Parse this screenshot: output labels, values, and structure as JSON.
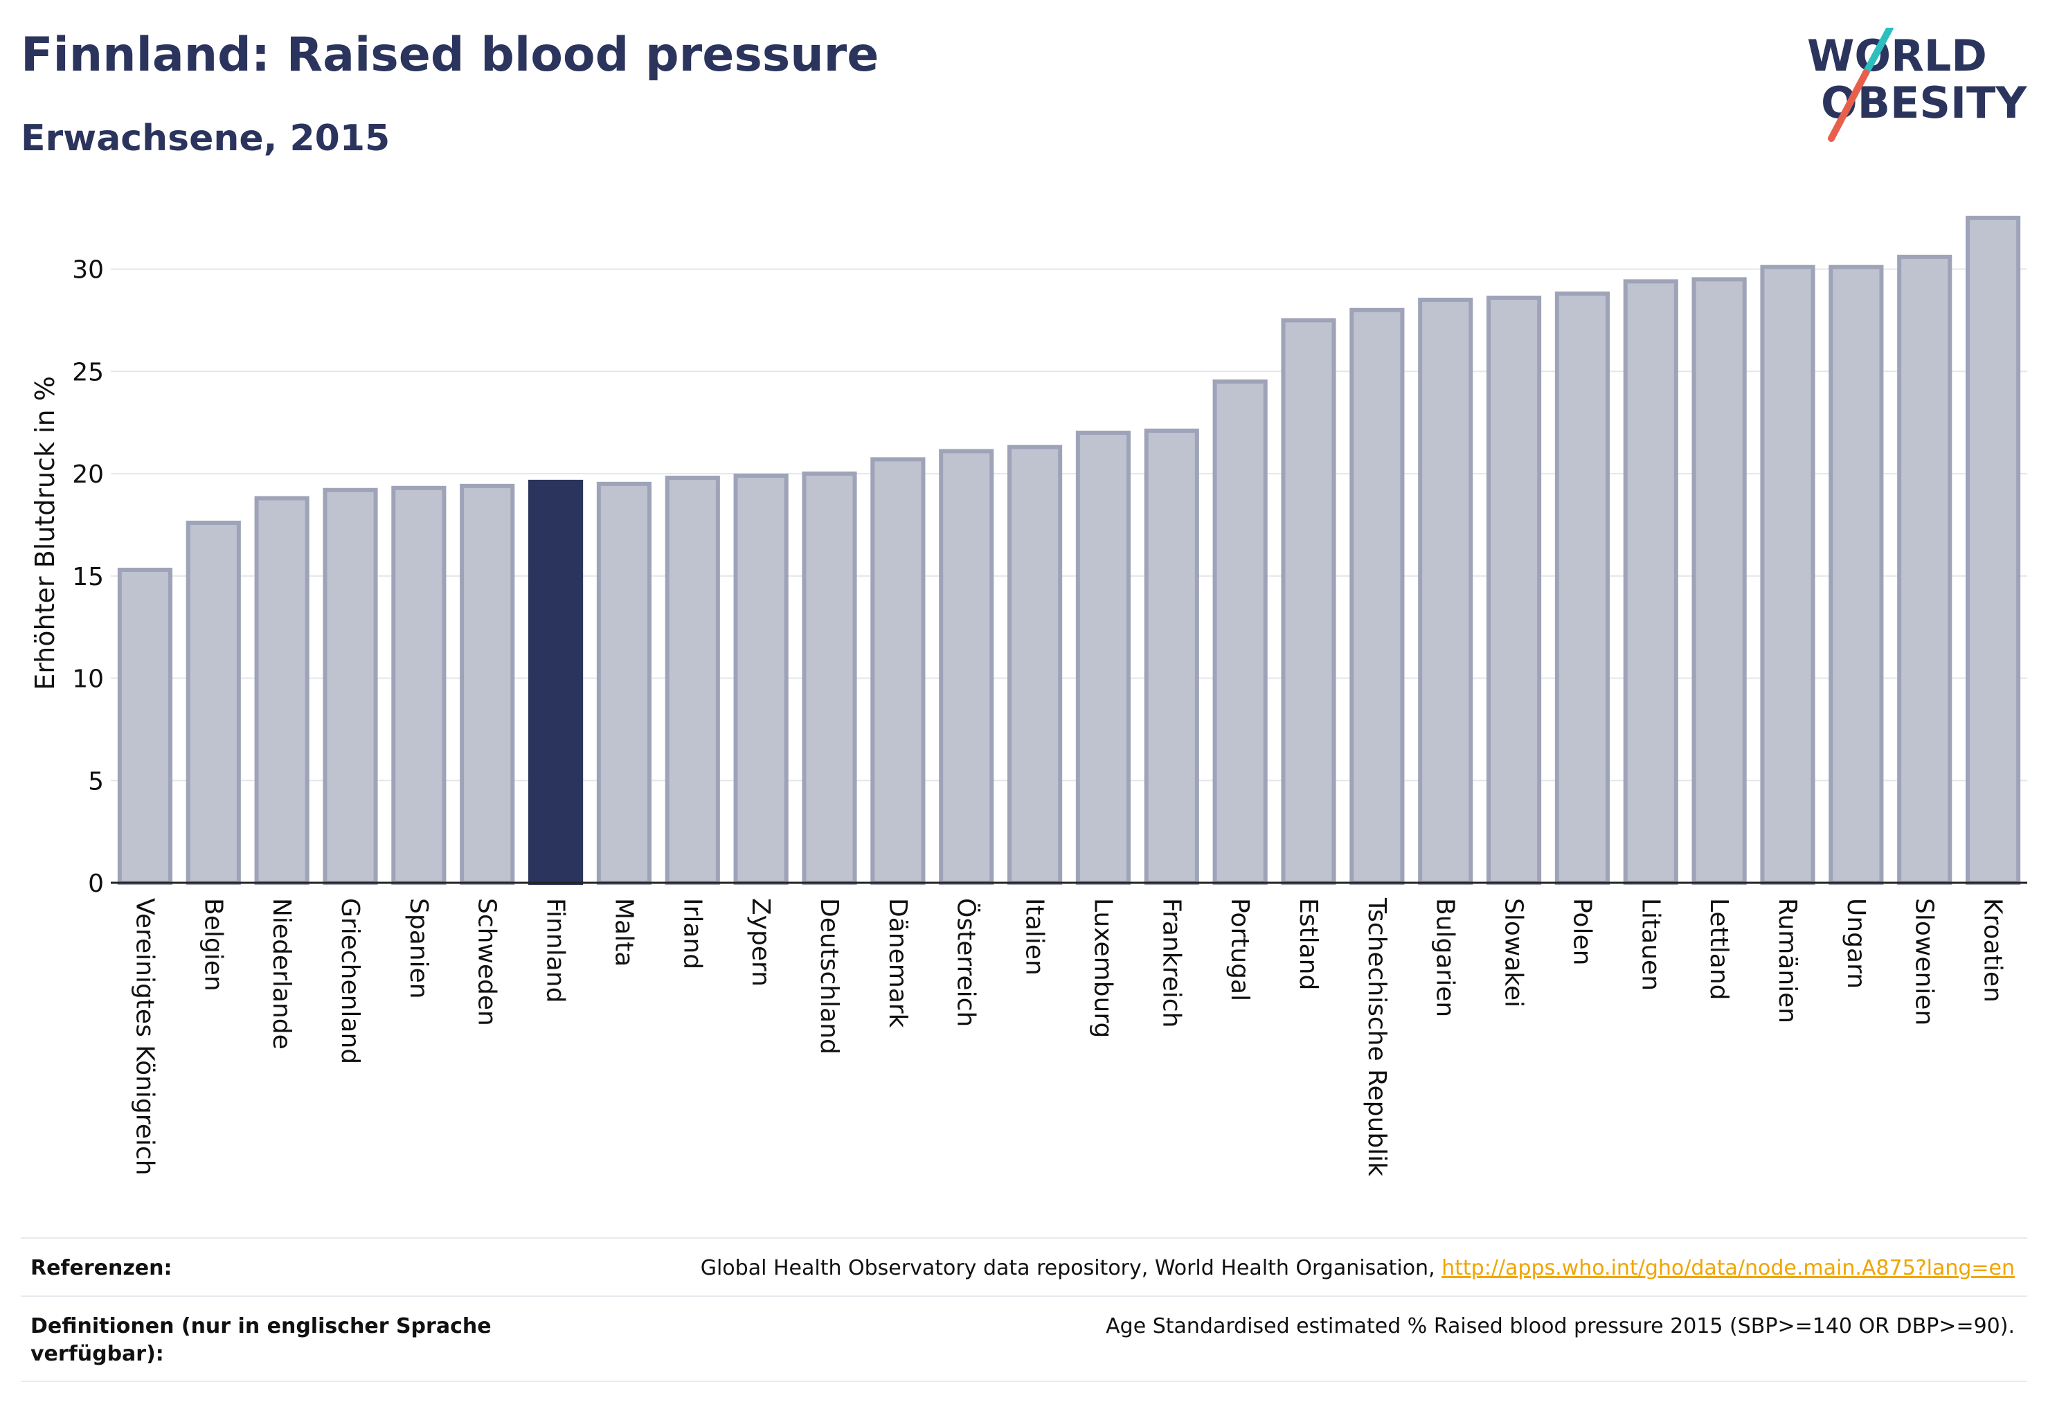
{
  "header": {
    "title": "Finnland: Raised blood pressure",
    "subtitle": "Erwachsene, 2015"
  },
  "logo": {
    "line1": "WORLD",
    "line2": "OBESITY",
    "icon": "world-obesity-logo"
  },
  "chart_data": {
    "type": "bar",
    "ylabel": "Erhöhter Blutdruck in %",
    "ylim": [
      0,
      33
    ],
    "yticks": [
      0,
      5,
      10,
      15,
      20,
      25,
      30
    ],
    "grid": true,
    "highlight": "Finnland",
    "colors": {
      "default": "#bfc2cf",
      "default_stroke": "#9ea3b8",
      "highlight": "#2b345d"
    },
    "categories": [
      "Vereinigtes Königreich",
      "Belgien",
      "Niederlande",
      "Griechenland",
      "Spanien",
      "Schweden",
      "Finnland",
      "Malta",
      "Irland",
      "Zypern",
      "Deutschland",
      "Dänemark",
      "Österreich",
      "Italien",
      "Luxemburg",
      "Frankreich",
      "Portugal",
      "Estland",
      "Tschechische Republik",
      "Bulgarien",
      "Slowakei",
      "Polen",
      "Litauen",
      "Lettland",
      "Rumänien",
      "Ungarn",
      "Slowenien",
      "Kroatien"
    ],
    "values": [
      15.3,
      17.6,
      18.8,
      19.2,
      19.3,
      19.4,
      19.6,
      19.5,
      19.8,
      19.9,
      20.0,
      20.7,
      21.1,
      21.3,
      22.0,
      22.1,
      24.5,
      27.5,
      28.0,
      28.5,
      28.6,
      28.8,
      29.4,
      29.5,
      30.1,
      30.1,
      30.6,
      32.5
    ]
  },
  "footer": {
    "references_label": "Referenzen:",
    "references_text": "Global Health Observatory data repository, World Health Organisation, ",
    "references_link": "http://apps.who.int/gho/data/node.main.A875?lang=en",
    "definitions_label": "Definitionen (nur in englischer Sprache verfügbar):",
    "definitions_text": "Age Standardised estimated % Raised blood pressure 2015 (SBP>=140 OR DBP>=90)."
  }
}
